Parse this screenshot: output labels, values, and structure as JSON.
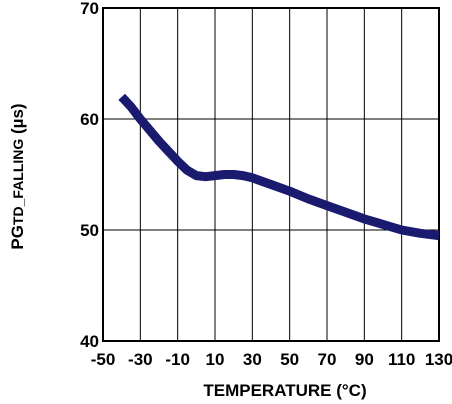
{
  "chart_data": {
    "type": "line",
    "title": "",
    "xlabel": "TEMPERATURE (°C)",
    "ylabel_main": "PG",
    "ylabel_sub": "TD_FALLING",
    "ylabel_unit": " (µs)",
    "xlim": [
      -50,
      130
    ],
    "ylim": [
      40,
      70
    ],
    "x_ticks": [
      -50,
      -30,
      -10,
      10,
      30,
      50,
      70,
      90,
      110,
      130
    ],
    "y_ticks": [
      40,
      50,
      60,
      70
    ],
    "grid": true,
    "legend": "none",
    "series": [
      {
        "color": "#1a1a6e",
        "x": [
          -40,
          -35,
          -30,
          -25,
          -20,
          -15,
          -10,
          -5,
          0,
          5,
          10,
          15,
          20,
          25,
          30,
          40,
          50,
          60,
          70,
          80,
          90,
          100,
          110,
          120,
          130
        ],
        "y": [
          62,
          61.1,
          60,
          59.0,
          58.0,
          57.1,
          56.2,
          55.4,
          54.9,
          54.8,
          54.9,
          55.0,
          55.0,
          54.9,
          54.7,
          54.1,
          53.5,
          52.8,
          52.2,
          51.6,
          51.0,
          50.5,
          50.0,
          49.7,
          49.5
        ]
      }
    ]
  }
}
